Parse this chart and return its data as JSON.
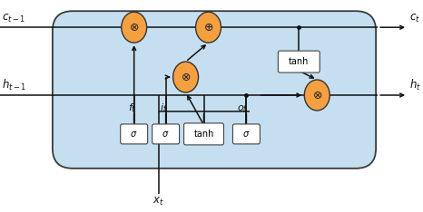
{
  "fig_width": 4.66,
  "fig_height": 2.34,
  "dpi": 100,
  "box_facecolor": "#c5dff0",
  "box_edgecolor": "#3a3a3a",
  "gate_fill": "#f5a040",
  "gate_edge": "#333333",
  "small_box_fill": "#ffffff",
  "small_box_edge": "#444444",
  "line_color": "#111111",
  "text_color": "#111111",
  "label_ct1": "$c_{t-1}$",
  "label_ct": "$c_t$",
  "label_ht1": "$h_{t-1}$",
  "label_ht": "$h_t$",
  "label_xt": "$x_t$",
  "label_ft": "$f_t$",
  "label_it": "$i_t$",
  "label_ot": "$o_t$"
}
